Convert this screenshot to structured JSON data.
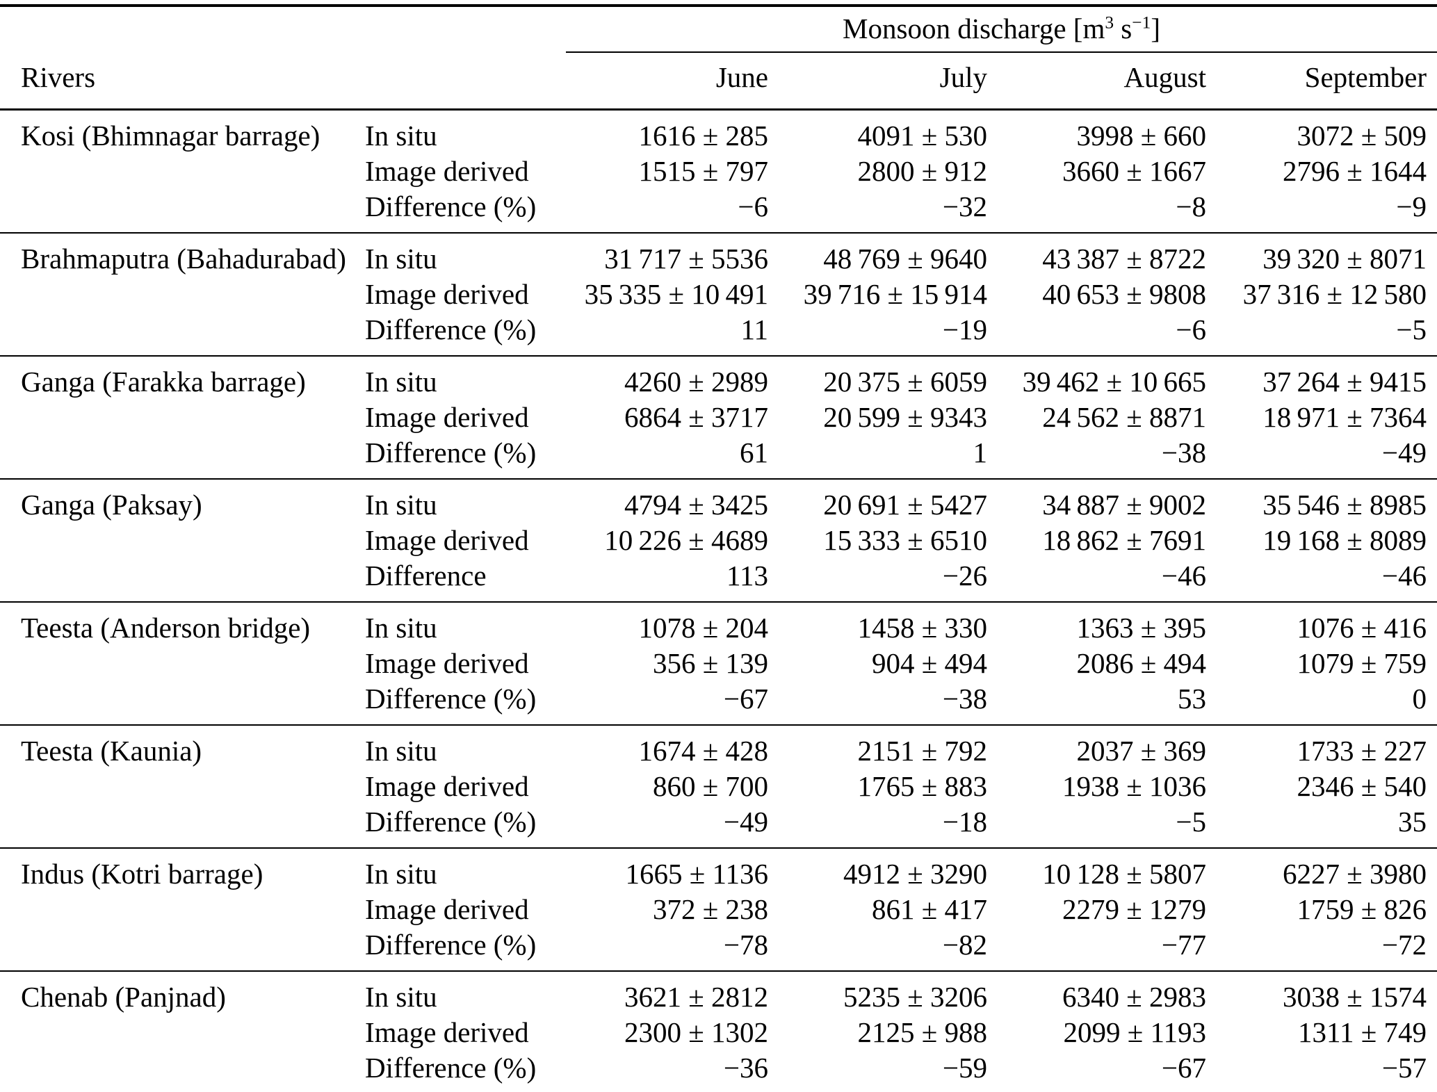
{
  "table": {
    "group_header": {
      "title": "Monsoon discharge",
      "unit_open": "[m",
      "unit_exp1": "3",
      "unit_mid": " s",
      "unit_exp2": "−1",
      "unit_close": "]"
    },
    "rivers_header": "Rivers",
    "months": [
      "June",
      "July",
      "August",
      "September"
    ],
    "rivers": [
      {
        "name": "Kosi (Bhimnagar barrage)",
        "rows": [
          {
            "label": "In situ",
            "values": [
              "1616 ± 285",
              "4091 ± 530",
              "3998 ± 660",
              "3072 ± 509"
            ]
          },
          {
            "label": "Image derived",
            "values": [
              "1515 ± 797",
              "2800 ± 912",
              "3660 ± 1667",
              "2796 ± 1644"
            ]
          },
          {
            "label": "Difference (%)",
            "values": [
              "−6",
              "−32",
              "−8",
              "−9"
            ]
          }
        ]
      },
      {
        "name": "Brahmaputra (Bahadurabad)",
        "rows": [
          {
            "label": "In situ",
            "values": [
              "31 717 ± 5536",
              "48 769 ± 9640",
              "43 387 ± 8722",
              "39 320 ± 8071"
            ]
          },
          {
            "label": "Image derived",
            "values": [
              "35 335 ± 10 491",
              "39 716 ± 15 914",
              "40 653 ± 9808",
              "37 316 ± 12 580"
            ]
          },
          {
            "label": "Difference (%)",
            "values": [
              "11",
              "−19",
              "−6",
              "−5"
            ]
          }
        ]
      },
      {
        "name": "Ganga (Farakka barrage)",
        "rows": [
          {
            "label": "In situ",
            "values": [
              "4260 ± 2989",
              "20 375 ± 6059",
              "39 462 ± 10 665",
              "37 264 ± 9415"
            ]
          },
          {
            "label": "Image derived",
            "values": [
              "6864 ± 3717",
              "20 599 ± 9343",
              "24 562 ± 8871",
              "18 971 ± 7364"
            ]
          },
          {
            "label": "Difference (%)",
            "values": [
              "61",
              "1",
              "−38",
              "−49"
            ]
          }
        ]
      },
      {
        "name": "Ganga (Paksay)",
        "rows": [
          {
            "label": "In situ",
            "values": [
              "4794 ± 3425",
              "20 691 ± 5427",
              "34 887 ± 9002",
              "35 546 ± 8985"
            ]
          },
          {
            "label": "Image derived",
            "values": [
              "10 226 ± 4689",
              "15 333 ± 6510",
              "18 862 ± 7691",
              "19 168 ± 8089"
            ]
          },
          {
            "label": "Difference",
            "values": [
              "113",
              "−26",
              "−46",
              "−46"
            ]
          }
        ]
      },
      {
        "name": "Teesta (Anderson bridge)",
        "rows": [
          {
            "label": "In situ",
            "values": [
              "1078 ± 204",
              "1458 ± 330",
              "1363 ± 395",
              "1076 ± 416"
            ]
          },
          {
            "label": "Image derived",
            "values": [
              "356 ± 139",
              "904 ± 494",
              "2086 ± 494",
              "1079 ± 759"
            ]
          },
          {
            "label": "Difference (%)",
            "values": [
              "−67",
              "−38",
              "53",
              "0"
            ]
          }
        ]
      },
      {
        "name": "Teesta (Kaunia)",
        "rows": [
          {
            "label": "In situ",
            "values": [
              "1674 ± 428",
              "2151 ± 792",
              "2037 ± 369",
              "1733 ± 227"
            ]
          },
          {
            "label": "Image derived",
            "values": [
              "860 ± 700",
              "1765 ± 883",
              "1938 ± 1036",
              "2346 ± 540"
            ]
          },
          {
            "label": "Difference (%)",
            "values": [
              "−49",
              "−18",
              "−5",
              "35"
            ]
          }
        ]
      },
      {
        "name": "Indus (Kotri barrage)",
        "rows": [
          {
            "label": "In situ",
            "values": [
              "1665 ± 1136",
              "4912 ± 3290",
              "10 128 ± 5807",
              "6227 ± 3980"
            ]
          },
          {
            "label": "Image derived",
            "values": [
              "372 ± 238",
              "861 ± 417",
              "2279 ± 1279",
              "1759 ± 826"
            ]
          },
          {
            "label": "Difference (%)",
            "values": [
              "−78",
              "−82",
              "−77",
              "−72"
            ]
          }
        ]
      },
      {
        "name": "Chenab (Panjnad)",
        "rows": [
          {
            "label": "In situ",
            "values": [
              "3621 ± 2812",
              "5235 ± 3206",
              "6340 ± 2983",
              "3038 ± 1574"
            ]
          },
          {
            "label": "Image derived",
            "values": [
              "2300 ± 1302",
              "2125 ± 988",
              "2099 ± 1193",
              "1311 ± 749"
            ]
          },
          {
            "label": "Difference (%)",
            "values": [
              "−36",
              "−59",
              "−67",
              "−57"
            ]
          }
        ]
      }
    ]
  }
}
